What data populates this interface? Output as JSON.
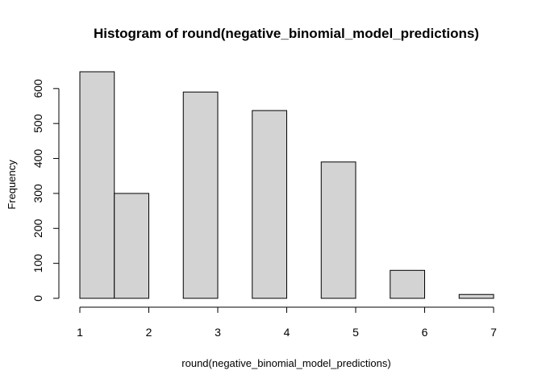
{
  "chart_data": {
    "type": "bar",
    "title": "Histogram of round(negative_binomial_model_predictions)",
    "xlabel": "round(negative_binomial_model_predictions)",
    "ylabel": "Frequency",
    "bins": [
      {
        "start": 1.0,
        "end": 1.5,
        "value": 648
      },
      {
        "start": 1.5,
        "end": 2.0,
        "value": 300
      },
      {
        "start": 2.0,
        "end": 2.5,
        "value": 0
      },
      {
        "start": 2.5,
        "end": 3.0,
        "value": 590
      },
      {
        "start": 3.0,
        "end": 3.5,
        "value": 0
      },
      {
        "start": 3.5,
        "end": 4.0,
        "value": 537
      },
      {
        "start": 4.0,
        "end": 4.5,
        "value": 0
      },
      {
        "start": 4.5,
        "end": 5.0,
        "value": 390
      },
      {
        "start": 5.0,
        "end": 5.5,
        "value": 0
      },
      {
        "start": 5.5,
        "end": 6.0,
        "value": 80
      },
      {
        "start": 6.0,
        "end": 6.5,
        "value": 0
      },
      {
        "start": 6.5,
        "end": 7.0,
        "value": 11
      }
    ],
    "xlim": [
      1,
      7
    ],
    "ylim": [
      0,
      648
    ],
    "xticks": [
      1,
      2,
      3,
      4,
      5,
      6,
      7
    ],
    "yticks": [
      0,
      100,
      200,
      300,
      400,
      500,
      600
    ],
    "grid": false,
    "legend": "none",
    "bar_color": "#d3d3d3",
    "edge_color": "#000000"
  }
}
